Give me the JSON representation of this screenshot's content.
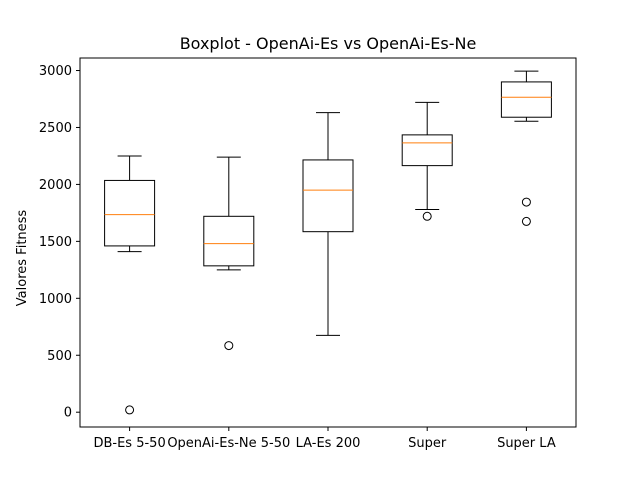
{
  "chart_data": {
    "type": "boxplot",
    "title": "Boxplot - OpenAi-Es vs OpenAi-Es-Ne",
    "xlabel": "",
    "ylabel": "Valores Fitness",
    "ylim": [
      -130,
      3110
    ],
    "yticks": [
      0,
      500,
      1000,
      1500,
      2000,
      2500,
      3000
    ],
    "categories": [
      "DB-Es 5-50",
      "OpenAi-Es-Ne 5-50",
      "LA-Es 200",
      "Super",
      "Super LA"
    ],
    "boxes": [
      {
        "whisker_low": 1410,
        "q1": 1460,
        "median": 1735,
        "q3": 2035,
        "whisker_high": 2250,
        "outliers": [
          20
        ]
      },
      {
        "whisker_low": 1250,
        "q1": 1285,
        "median": 1480,
        "q3": 1720,
        "whisker_high": 2240,
        "outliers": [
          585
        ]
      },
      {
        "whisker_low": 675,
        "q1": 1585,
        "median": 1950,
        "q3": 2215,
        "whisker_high": 2630,
        "outliers": []
      },
      {
        "whisker_low": 1780,
        "q1": 2165,
        "median": 2365,
        "q3": 2435,
        "whisker_high": 2720,
        "outliers": [
          1720
        ]
      },
      {
        "whisker_low": 2555,
        "q1": 2590,
        "median": 2765,
        "q3": 2900,
        "whisker_high": 2995,
        "outliers": [
          1845,
          1675
        ]
      }
    ],
    "colors": {
      "box": "#000000",
      "median": "#ff7f0e",
      "outlier": "#000000"
    },
    "grid": false,
    "legend": "none"
  }
}
